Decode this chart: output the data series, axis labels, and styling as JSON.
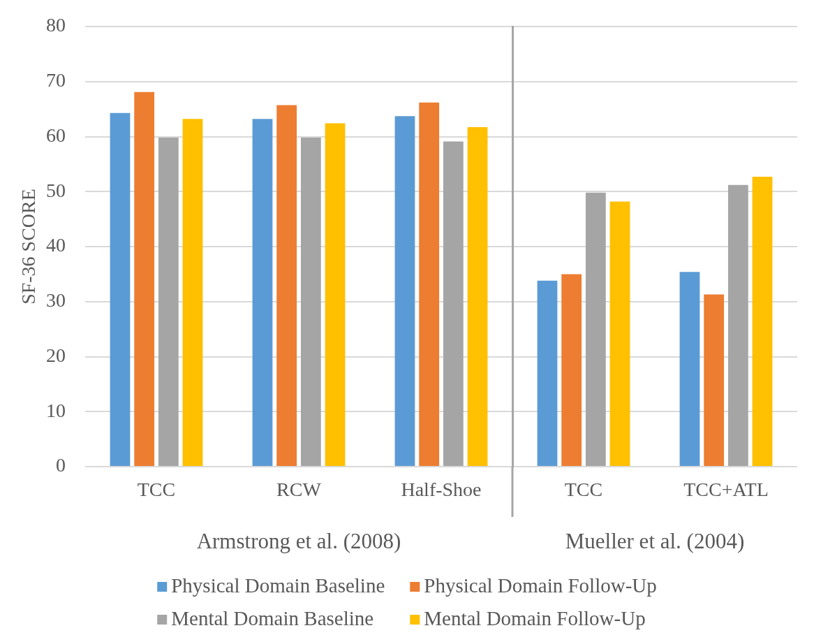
{
  "chart_data": [
    {
      "type": "bar",
      "xlabel": "Armstrong et al. (2008)",
      "ylabel": "SF-36 SCORE",
      "categories": [
        "TCC",
        "RCW",
        "Half-Shoe"
      ],
      "series": [
        {
          "name": "Physical Domain Baseline",
          "color": "#5b9bd5",
          "values": [
            64.3,
            63.2,
            63.7
          ]
        },
        {
          "name": "Physical Domain Follow-Up",
          "color": "#ed7d31",
          "values": [
            68.1,
            65.7,
            66.2
          ]
        },
        {
          "name": "Mental Domain Baseline",
          "color": "#a5a5a5",
          "values": [
            59.8,
            59.8,
            59.1
          ]
        },
        {
          "name": "Mental Domain Follow-Up",
          "color": "#ffc000",
          "values": [
            63.2,
            62.4,
            61.7
          ]
        }
      ],
      "ylim": [
        0,
        80
      ],
      "yticks": [
        0,
        10,
        20,
        30,
        40,
        50,
        60,
        70,
        80
      ],
      "grid": "y",
      "legend": "bottom"
    },
    {
      "type": "bar",
      "xlabel": "Mueller et al. (2004)",
      "categories": [
        "TCC",
        "TCC+ATL"
      ],
      "series": [
        {
          "color": "#5b9bd5",
          "values": [
            33.8,
            35.4
          ]
        },
        {
          "color": "#ed7d31",
          "values": [
            35.0,
            31.3
          ]
        },
        {
          "color": "#a5a5a5",
          "values": [
            49.8,
            51.2
          ]
        },
        {
          "color": "#ffc000",
          "values": [
            48.2,
            52.7
          ]
        }
      ],
      "ylim": [
        0,
        80
      ],
      "yticks": [
        0,
        10,
        20,
        30,
        40,
        50,
        60,
        70,
        80
      ],
      "grid": "y",
      "tick_labels": "x"
    }
  ]
}
